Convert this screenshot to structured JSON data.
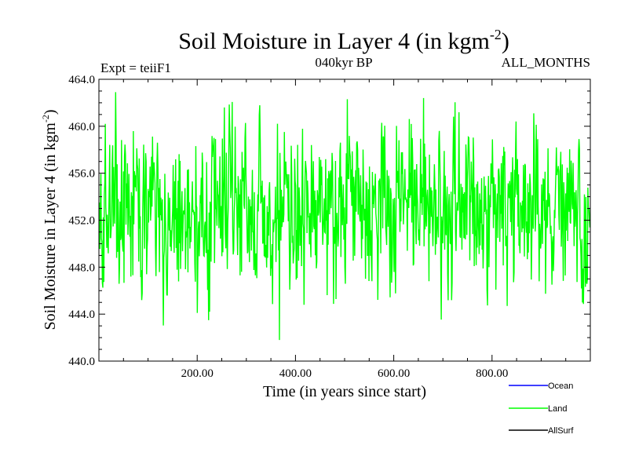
{
  "chart_data": {
    "type": "line",
    "title": "Soil Moisture in Layer 4 (in kgm",
    "title_superscript": "-2",
    "title_close": ")",
    "subtitle_left": "Expt = teiiF1",
    "subtitle_center": "040kyr BP",
    "subtitle_right": "ALL_MONTHS",
    "xlabel": "Time (in years since start)",
    "ylabel": "Soil Moisture in Layer 4 (in kgm",
    "ylabel_superscript": "-2",
    "ylabel_close": ")",
    "xlim": [
      0,
      1000
    ],
    "ylim": [
      440,
      464
    ],
    "x_ticks": [
      {
        "value": 200,
        "label": "200.00"
      },
      {
        "value": 400,
        "label": "400.00"
      },
      {
        "value": 600,
        "label": "600.00"
      },
      {
        "value": 800,
        "label": "800.00"
      }
    ],
    "y_ticks": [
      {
        "value": 440,
        "label": "440.0"
      },
      {
        "value": 444,
        "label": "444.0"
      },
      {
        "value": 448,
        "label": "448.0"
      },
      {
        "value": 452,
        "label": "452.0"
      },
      {
        "value": 456,
        "label": "456.0"
      },
      {
        "value": 460,
        "label": "460.0"
      },
      {
        "value": 464,
        "label": "464.0"
      }
    ],
    "series": [
      {
        "name": "Land",
        "color": "#00ff00",
        "generated": {
          "n": 1000,
          "mean": 453.1,
          "amplitude": 3.4,
          "seed": 40
        },
        "extremes": [
          {
            "x": 367,
            "y": 441.8
          },
          {
            "x": 660,
            "y": 462.4
          },
          {
            "x": 505,
            "y": 462.3
          },
          {
            "x": 255,
            "y": 461.6
          },
          {
            "x": 225,
            "y": 444.2
          },
          {
            "x": 200,
            "y": 444.1
          }
        ]
      }
    ],
    "legend": [
      {
        "name": "Ocean",
        "color": "#0000ff"
      },
      {
        "name": "Land",
        "color": "#00ff00"
      },
      {
        "name": "AllSurf",
        "color": "#000000"
      }
    ],
    "legend_position": "bottom-right",
    "grid": false
  }
}
